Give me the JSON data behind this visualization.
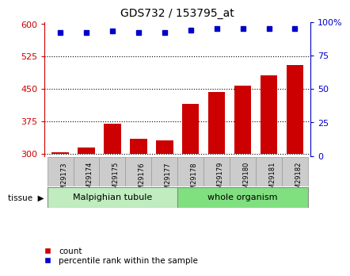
{
  "title": "GDS732 / 153795_at",
  "categories": [
    "GSM29173",
    "GSM29174",
    "GSM29175",
    "GSM29176",
    "GSM29177",
    "GSM29178",
    "GSM29179",
    "GSM29180",
    "GSM29181",
    "GSM29182"
  ],
  "counts": [
    303,
    315,
    370,
    335,
    330,
    415,
    443,
    458,
    482,
    505
  ],
  "percentiles": [
    92,
    92,
    93,
    92,
    92,
    94,
    95,
    95,
    95,
    95
  ],
  "bar_color": "#cc0000",
  "dot_color": "#0000cc",
  "ylim_left": [
    295,
    605
  ],
  "ylim_right": [
    0,
    100
  ],
  "yticks_left": [
    300,
    375,
    450,
    525,
    600
  ],
  "yticks_right": [
    0,
    25,
    50,
    75,
    100
  ],
  "yticklabels_right": [
    "0",
    "25",
    "50",
    "75",
    "100%"
  ],
  "group1_label": "Malpighian tubule",
  "group1_count": 5,
  "group2_label": "whole organism",
  "group2_count": 5,
  "group1_color": "#c0ecc0",
  "group2_color": "#80e080",
  "tissue_label": "tissue",
  "legend_count_label": "count",
  "legend_percentile_label": "percentile rank within the sample",
  "bar_color_left": "#cc0000",
  "bar_color_right": "#0000cc",
  "tickbox_color": "#cccccc",
  "tickbox_edge": "#999999",
  "bar_bottom": 300,
  "bar_width": 0.65
}
